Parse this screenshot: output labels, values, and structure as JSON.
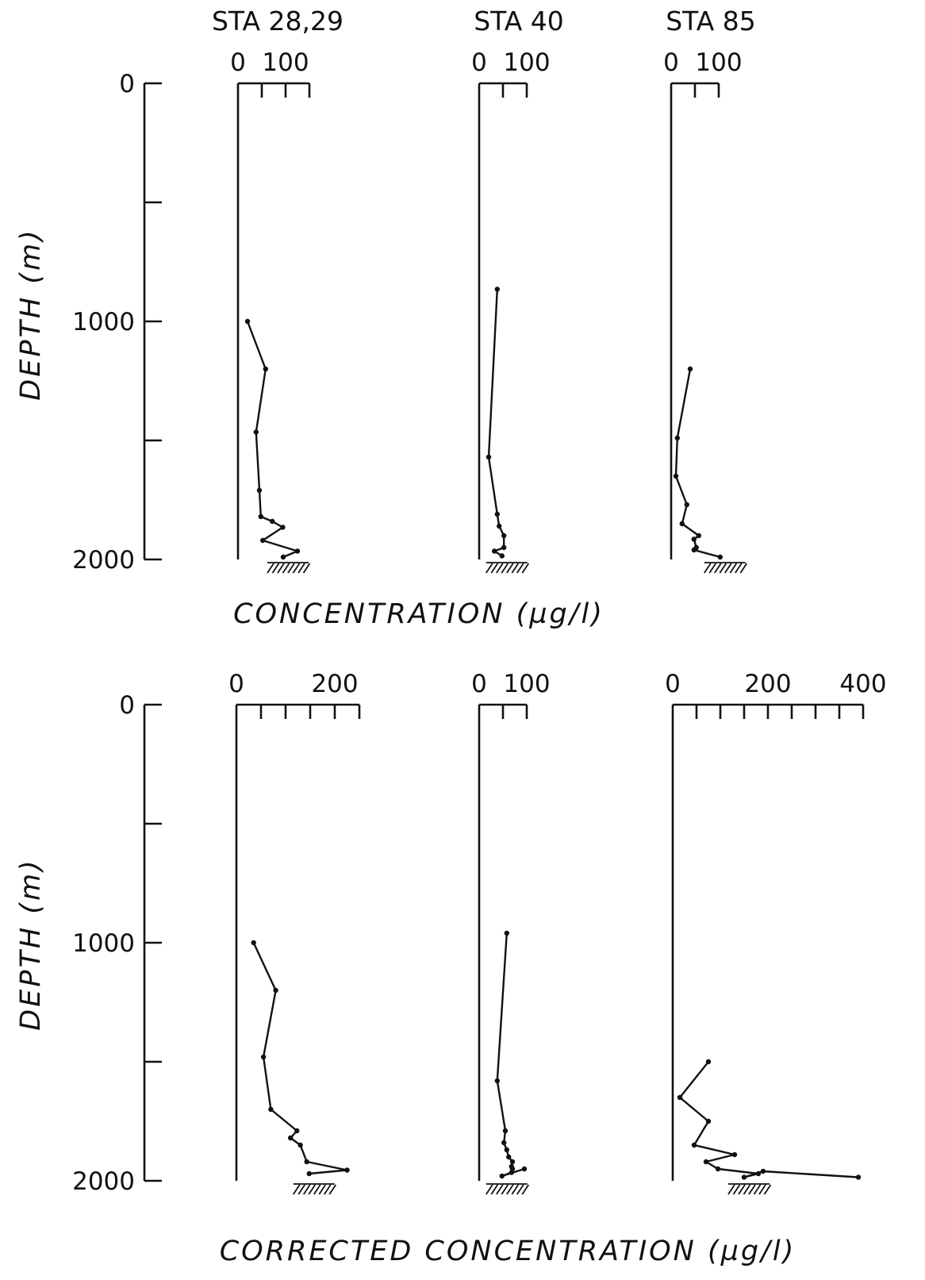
{
  "panels": {
    "top": {
      "ylabel": "DEPTH (m)",
      "xlabel": "CONCENTRATION (µg/l)"
    },
    "bottom": {
      "ylabel": "DEPTH (m)",
      "xlabel": "CORRECTED CONCENTRATION (µg/l)"
    }
  },
  "chart_data": [
    {
      "type": "line",
      "panel": "top",
      "title": "STA 28,29",
      "xlabel": "CONCENTRATION (µg/l)",
      "ylabel": "DEPTH (m)",
      "xlim": [
        0,
        150
      ],
      "ylim": [
        2000,
        0
      ],
      "y_ticks": [
        0,
        1000,
        2000
      ],
      "y_minor_ticks": [
        500,
        1500
      ],
      "x_ticks": [
        0,
        50,
        100,
        150
      ],
      "x_tick_labels": [
        "0",
        "100"
      ],
      "x_tick_label_values": [
        0,
        100
      ],
      "series": [
        {
          "x": [
            20,
            58,
            38,
            45,
            48,
            72,
            94,
            52,
            125,
            95
          ],
          "y": [
            1000,
            1200,
            1465,
            1710,
            1820,
            1840,
            1865,
            1920,
            1965,
            1990
          ]
        }
      ]
    },
    {
      "type": "line",
      "panel": "top",
      "title": "STA 40",
      "xlabel": "CONCENTRATION (µg/l)",
      "ylabel": "DEPTH (m)",
      "xlim": [
        0,
        100
      ],
      "ylim": [
        2000,
        0
      ],
      "y_ticks": [
        0,
        1000,
        2000
      ],
      "y_minor_ticks": [
        500,
        1500
      ],
      "x_ticks": [
        0,
        50,
        100
      ],
      "x_tick_labels": [
        "0",
        "100"
      ],
      "x_tick_label_values": [
        0,
        100
      ],
      "series": [
        {
          "x": [
            38,
            20,
            38,
            42,
            52,
            52,
            32,
            48
          ],
          "y": [
            865,
            1570,
            1810,
            1860,
            1900,
            1950,
            1965,
            1985
          ]
        }
      ]
    },
    {
      "type": "line",
      "panel": "top",
      "title": "STA 85",
      "xlabel": "CONCENTRATION (µg/l)",
      "ylabel": "DEPTH (m)",
      "xlim": [
        0,
        100
      ],
      "ylim": [
        2000,
        0
      ],
      "y_ticks": [
        0,
        1000,
        2000
      ],
      "y_minor_ticks": [
        500,
        1500
      ],
      "x_ticks": [
        0,
        50,
        100
      ],
      "x_tick_labels": [
        "0",
        "100"
      ],
      "x_tick_label_values": [
        0,
        100
      ],
      "series": [
        {
          "x": [
            40,
            13,
            10,
            33,
            23,
            58,
            48,
            53,
            48,
            103
          ],
          "y": [
            1200,
            1490,
            1650,
            1770,
            1850,
            1900,
            1915,
            1950,
            1960,
            1990
          ]
        }
      ]
    },
    {
      "type": "line",
      "panel": "bottom",
      "title": "",
      "xlabel": "CORRECTED CONCENTRATION (µg/l)",
      "ylabel": "DEPTH (m)",
      "xlim": [
        0,
        250
      ],
      "ylim": [
        2000,
        0
      ],
      "y_ticks": [
        0,
        1000,
        2000
      ],
      "y_minor_ticks": [
        500,
        1500
      ],
      "x_ticks": [
        0,
        50,
        100,
        150,
        200,
        250
      ],
      "x_tick_labels": [
        "0",
        "200"
      ],
      "x_tick_label_values": [
        0,
        200
      ],
      "series": [
        {
          "x": [
            35,
            80,
            55,
            70,
            123,
            110,
            130,
            143,
            225,
            148
          ],
          "y": [
            1000,
            1200,
            1480,
            1700,
            1790,
            1820,
            1850,
            1920,
            1955,
            1970
          ]
        }
      ]
    },
    {
      "type": "line",
      "panel": "bottom",
      "title": "",
      "xlabel": "CORRECTED CONCENTRATION (µg/l)",
      "ylabel": "DEPTH (m)",
      "xlim": [
        0,
        100
      ],
      "ylim": [
        2000,
        0
      ],
      "y_ticks": [
        0,
        1000,
        2000
      ],
      "y_minor_ticks": [
        500,
        1500
      ],
      "x_ticks": [
        0,
        50,
        100
      ],
      "x_tick_labels": [
        "0",
        "100"
      ],
      "x_tick_label_values": [
        0,
        100
      ],
      "series": [
        {
          "x": [
            58,
            38,
            55,
            52,
            58,
            62,
            70,
            68,
            70,
            68,
            48,
            95
          ],
          "y": [
            960,
            1580,
            1790,
            1840,
            1870,
            1900,
            1920,
            1940,
            1950,
            1965,
            1980,
            1950
          ]
        }
      ]
    },
    {
      "type": "line",
      "panel": "bottom",
      "title": "",
      "xlabel": "CORRECTED CONCENTRATION (µg/l)",
      "ylabel": "DEPTH (m)",
      "xlim": [
        0,
        400
      ],
      "ylim": [
        2000,
        0
      ],
      "y_ticks": [
        0,
        1000,
        2000
      ],
      "y_minor_ticks": [
        500,
        1500
      ],
      "x_ticks": [
        0,
        50,
        100,
        150,
        200,
        250,
        300,
        350,
        400
      ],
      "x_tick_labels": [
        "0",
        "200",
        "400"
      ],
      "x_tick_label_values": [
        0,
        200,
        400
      ],
      "series": [
        {
          "x": [
            75,
            15,
            75,
            45,
            130,
            70,
            95,
            180,
            150,
            190,
            390
          ],
          "y": [
            1500,
            1650,
            1750,
            1850,
            1890,
            1920,
            1950,
            1970,
            1985,
            1960,
            1985
          ]
        }
      ]
    }
  ]
}
